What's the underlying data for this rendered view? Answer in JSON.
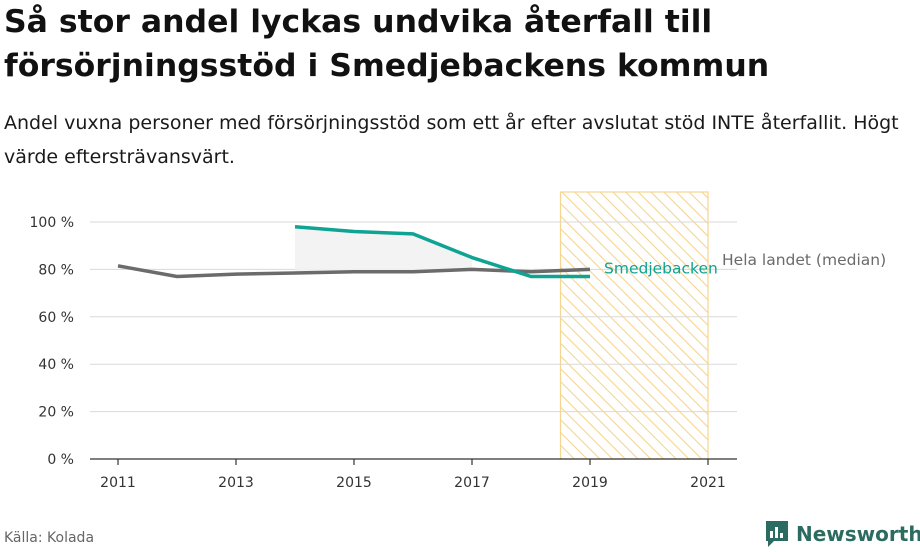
{
  "header": {
    "title": "Så stor andel lyckas undvika återfall till försörjningsstöd i Smedjebackens kommun",
    "subtitle": "Andel vuxna personer med försörjningsstöd som ett år efter avslutat stöd INTE återfallit. Högt värde eftersträvansvärt."
  },
  "footer": {
    "source": "Källa: Kolada",
    "brand": "Newsworthy"
  },
  "colors": {
    "primary_series": "#0fa394",
    "secondary_series": "#6b6b6b",
    "forecast_hatch": "#f5d590",
    "grid": "#d9d9d9",
    "brand": "#2b6b62"
  },
  "chart_data": {
    "type": "line",
    "title": "",
    "xlabel": "",
    "ylabel": "",
    "x": [
      2011,
      2012,
      2013,
      2014,
      2015,
      2016,
      2017,
      2018,
      2019
    ],
    "xlim": [
      2011,
      2021
    ],
    "ylim": [
      0,
      100
    ],
    "x_ticks": [
      2011,
      2013,
      2015,
      2017,
      2019,
      2021
    ],
    "y_ticks": [
      0,
      20,
      40,
      60,
      80,
      100
    ],
    "y_tick_labels": [
      "0 %",
      "20 %",
      "40 %",
      "60 %",
      "80 %",
      "100 %"
    ],
    "grid": true,
    "shaded_region": {
      "from": 2018.5,
      "to": 2021
    },
    "series": [
      {
        "name": "Smedjebacken",
        "label": "Smedjebacken",
        "x": [
          2014,
          2015,
          2016,
          2017,
          2018,
          2019
        ],
        "values": [
          98,
          96,
          95,
          85,
          77,
          77
        ]
      },
      {
        "name": "Hela landet (median)",
        "label": "Hela landet (median)",
        "x": [
          2011,
          2012,
          2013,
          2014,
          2015,
          2016,
          2017,
          2018,
          2019
        ],
        "values": [
          81.5,
          77,
          78,
          78.5,
          79,
          79,
          80,
          79,
          80
        ]
      }
    ]
  }
}
